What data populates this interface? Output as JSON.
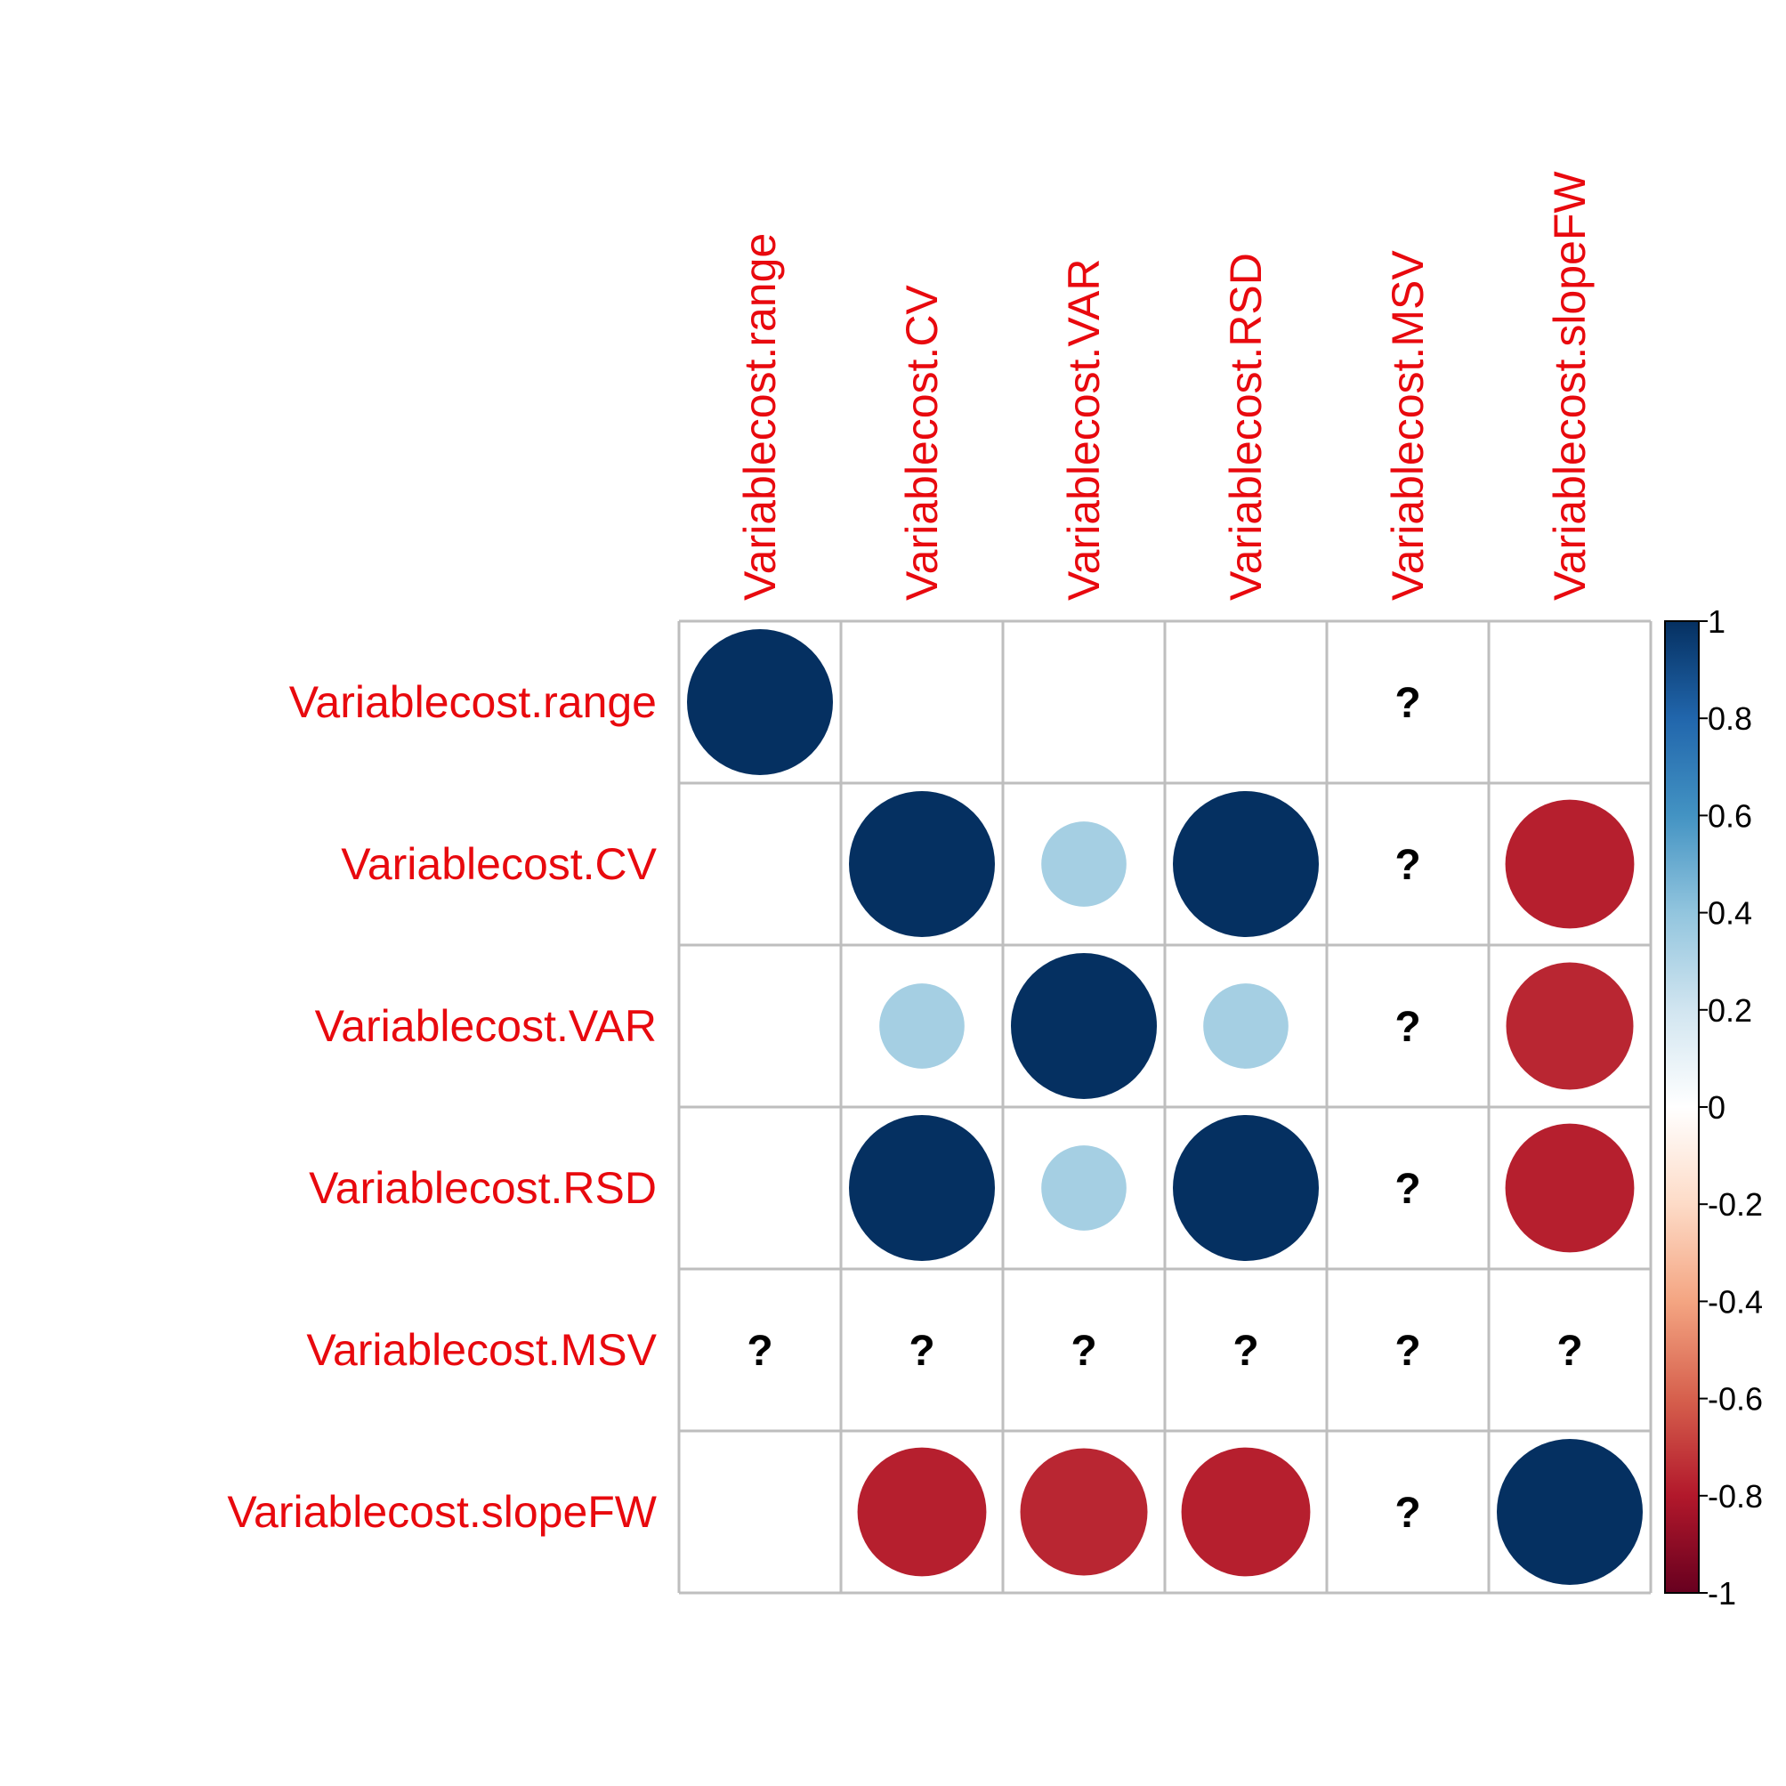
{
  "chart_data": {
    "type": "heatmap",
    "variables": [
      "Variablecost.range",
      "Variablecost.CV",
      "Variablecost.VAR",
      "Variablecost.RSD",
      "Variablecost.MSV",
      "Variablecost.slopeFW"
    ],
    "values": [
      [
        1.0,
        0.0,
        0.0,
        0.0,
        null,
        0.0
      ],
      [
        0.0,
        1.0,
        0.34,
        1.0,
        null,
        -0.78
      ],
      [
        0.0,
        0.34,
        1.0,
        0.34,
        null,
        -0.76
      ],
      [
        0.0,
        1.0,
        0.34,
        1.0,
        null,
        -0.78
      ],
      [
        null,
        null,
        null,
        null,
        null,
        null
      ],
      [
        0.0,
        -0.78,
        -0.76,
        -0.78,
        null,
        1.0
      ]
    ],
    "na_symbol": "?",
    "method": "circle",
    "colorbar": {
      "range": [
        -1,
        1
      ],
      "ticks": [
        "1",
        "0.8",
        "0.6",
        "0.4",
        "0.2",
        "0",
        "-0.2",
        "-0.4",
        "-0.6",
        "-0.8",
        "-1"
      ],
      "colors": [
        "#67001F",
        "#B2182B",
        "#D6604D",
        "#F4A582",
        "#FDDBC7",
        "#FFFFFF",
        "#D1E5F0",
        "#92C5DE",
        "#4393C3",
        "#2166AC",
        "#053061"
      ]
    },
    "label_color": "#E8090E",
    "grid_color": "#BEBEBE",
    "legend_position": "right"
  }
}
